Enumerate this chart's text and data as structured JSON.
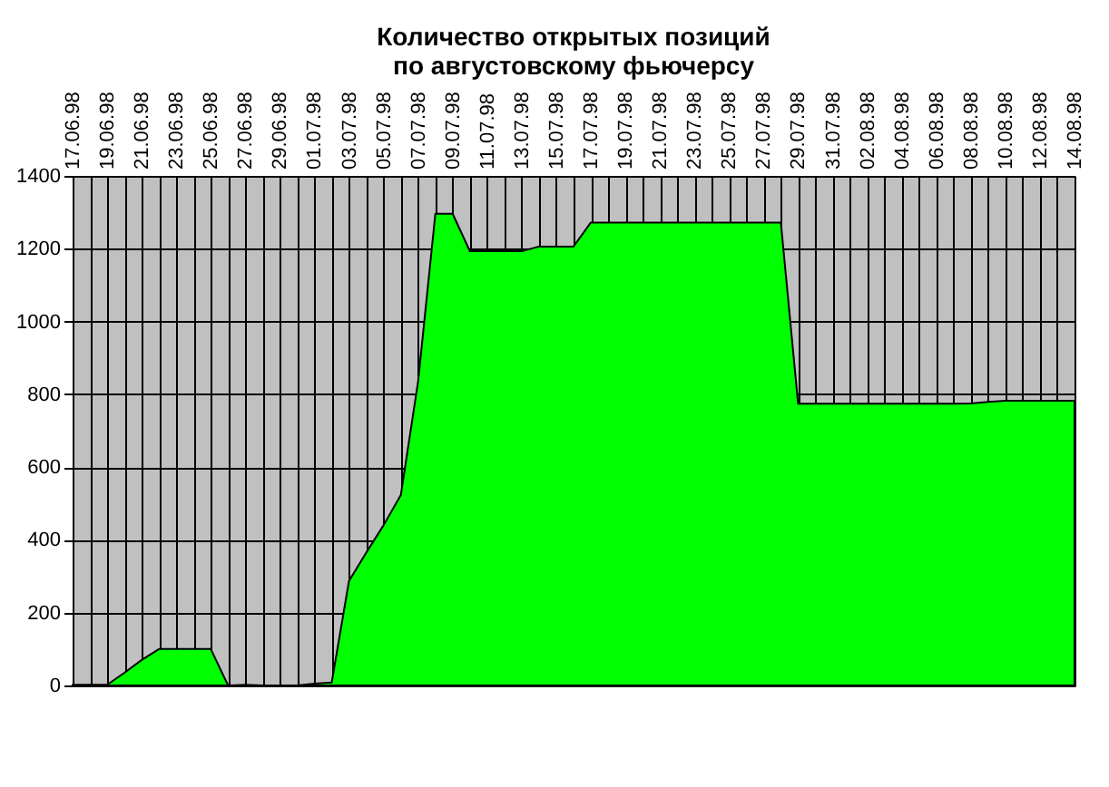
{
  "chart_data": {
    "type": "area",
    "title": [
      "Количество открытых позиций",
      "по августовскому фьючерсу"
    ],
    "categories": [
      "17.06.98",
      null,
      "19.06.98",
      null,
      "21.06.98",
      null,
      "23.06.98",
      null,
      "25.06.98",
      null,
      "27.06.98",
      null,
      "29.06.98",
      null,
      "01.07.98",
      null,
      "03.07.98",
      null,
      "05.07.98",
      null,
      "07.07.98",
      null,
      "09.07.98",
      null,
      "11.07.98",
      null,
      "13.07.98",
      null,
      "15.07.98",
      null,
      "17.07.98",
      null,
      "19.07.98",
      null,
      "21.07.98",
      null,
      "23.07.98",
      null,
      "25.07.98",
      null,
      "27.07.98",
      null,
      "29.07.98",
      null,
      "31.07.98",
      null,
      "02.08.98",
      null,
      "04.08.98",
      null,
      "06.08.98",
      null,
      "08.08.98",
      null,
      "10.08.98",
      null,
      "12.08.98",
      null,
      "14.08.98"
    ],
    "series": [
      {
        "color": "#00ff00",
        "values": [
          2,
          2,
          2,
          35,
          70,
          100,
          100,
          100,
          100,
          0,
          2,
          0,
          0,
          0,
          5,
          8,
          287,
          365,
          440,
          523,
          835,
          1296,
          1296,
          1193,
          1193,
          1193,
          1193,
          1206,
          1206,
          1206,
          1272,
          1272,
          1272,
          1272,
          1272,
          1272,
          1272,
          1272,
          1272,
          1272,
          1272,
          1272,
          774,
          774,
          774,
          774,
          774,
          774,
          774,
          774,
          774,
          774,
          775,
          779,
          782,
          782,
          782,
          782,
          782
        ]
      }
    ],
    "ylim": [
      0,
      1400
    ],
    "yticks": [
      0,
      200,
      400,
      600,
      800,
      1000,
      1200,
      1400
    ],
    "grid": true
  }
}
